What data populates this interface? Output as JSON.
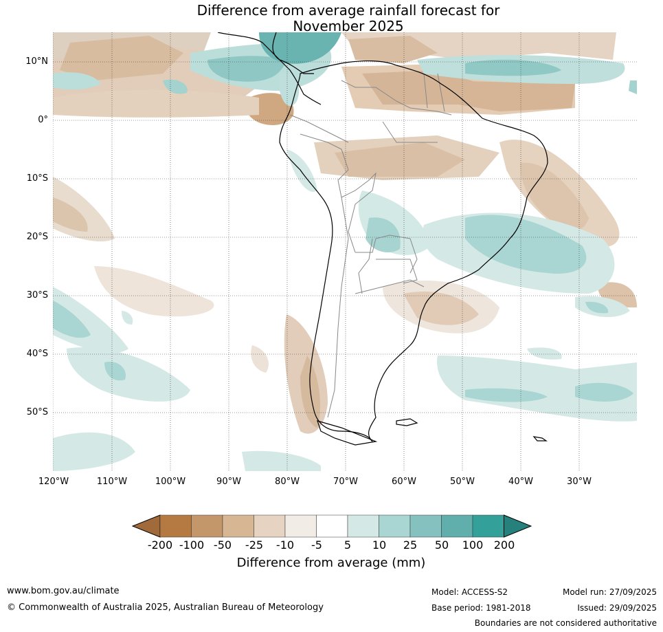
{
  "title": {
    "line1": "Difference from average rainfall forecast for",
    "line2": "November 2025"
  },
  "map": {
    "region": "South America",
    "lat_labels": [
      "10°N",
      "0°",
      "10°S",
      "20°S",
      "30°S",
      "40°S",
      "50°S"
    ],
    "lon_labels": [
      "120°W",
      "110°W",
      "100°W",
      "90°W",
      "80°W",
      "70°W",
      "60°W",
      "50°W",
      "40°W",
      "30°W"
    ]
  },
  "legend": {
    "ticks": [
      "-200",
      "-100",
      "-50",
      "-25",
      "-10",
      "-5",
      "5",
      "10",
      "25",
      "50",
      "100",
      "200"
    ],
    "colors": [
      "#a06a3a",
      "#b47a42",
      "#c4976a",
      "#d7b694",
      "#e7d3c1",
      "#f1ece6",
      "#ffffff",
      "#d4e9e6",
      "#a9d5d2",
      "#85c2bf",
      "#60afac",
      "#34a09a",
      "#26807b"
    ],
    "label": "Difference from average (mm)"
  },
  "footer": {
    "website": "www.bom.gov.au/climate",
    "copyright": "© Commonwealth of Australia 2025, Australian Bureau of Meteorology",
    "model": "Model: ACCESS-S2",
    "base_period": "Base period: 1981-2018",
    "model_run": "Model run: 27/09/2025",
    "issued": "Issued: 29/09/2025",
    "disclaimer": "Boundaries are not considered authoritative"
  }
}
